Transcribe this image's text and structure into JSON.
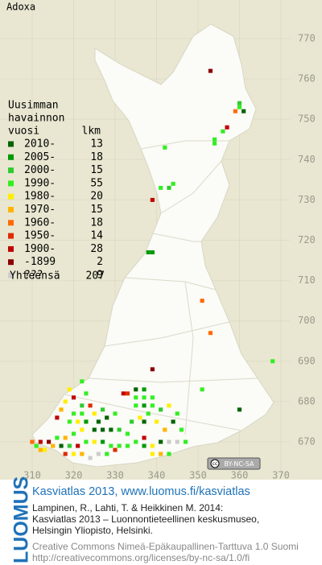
{
  "map": {
    "title": "Adoxa",
    "legend": {
      "heading": [
        "Uusimman",
        "havainnon",
        "vuosi"
      ],
      "count_header": "lkm",
      "items": [
        {
          "label": "2010-",
          "count": 13,
          "color": "#006400"
        },
        {
          "label": "2005-",
          "count": 18,
          "color": "#009a00"
        },
        {
          "label": "2000-",
          "count": 15,
          "color": "#2ecc2e"
        },
        {
          "label": "1990-",
          "count": 55,
          "color": "#33ee22"
        },
        {
          "label": "1980-",
          "count": 20,
          "color": "#ffee00"
        },
        {
          "label": "1970-",
          "count": 15,
          "color": "#ffb400"
        },
        {
          "label": "1960-",
          "count": 18,
          "color": "#ff6a00"
        },
        {
          "label": "1950-",
          "count": 14,
          "color": "#e02a00"
        },
        {
          "label": "1900-",
          "count": 28,
          "color": "#c00000"
        },
        {
          "label": "-1899",
          "count": 2,
          "color": "#8a0000"
        },
        {
          "label": "???",
          "count": 9,
          "color": "#cccccc"
        }
      ],
      "total_label": "Yhteensä",
      "total": 207
    },
    "yticks": [
      770,
      760,
      750,
      740,
      730,
      720,
      710,
      700,
      690,
      680,
      670
    ],
    "xticks": [
      310,
      320,
      330,
      340,
      350,
      360,
      370
    ],
    "squares": [
      [
        353,
        762,
        9
      ],
      [
        359,
        752,
        6
      ],
      [
        360,
        753,
        3
      ],
      [
        361,
        752,
        0
      ],
      [
        360,
        754,
        2
      ],
      [
        357,
        748,
        8
      ],
      [
        356,
        747,
        3
      ],
      [
        354,
        745,
        3
      ],
      [
        354,
        744,
        3
      ],
      [
        342,
        743,
        3
      ],
      [
        344,
        734,
        3
      ],
      [
        343,
        733,
        2
      ],
      [
        341,
        733,
        3
      ],
      [
        339,
        730,
        8
      ],
      [
        339,
        717,
        1
      ],
      [
        338,
        717,
        1
      ],
      [
        351,
        705,
        6
      ],
      [
        353,
        697,
        6
      ],
      [
        368,
        690,
        3
      ],
      [
        339,
        688,
        9
      ],
      [
        351,
        683,
        3
      ],
      [
        360,
        678,
        0
      ],
      [
        333,
        682,
        7
      ],
      [
        332,
        682,
        8
      ],
      [
        337,
        681,
        3
      ],
      [
        335,
        681,
        3
      ],
      [
        322,
        685,
        3
      ],
      [
        319,
        683,
        4
      ],
      [
        320,
        681,
        8
      ],
      [
        323,
        682,
        3
      ],
      [
        318,
        680,
        4
      ],
      [
        322,
        679,
        2
      ],
      [
        324,
        679,
        7
      ],
      [
        317,
        678,
        5
      ],
      [
        320,
        677,
        3
      ],
      [
        322,
        677,
        3
      ],
      [
        325,
        677,
        4
      ],
      [
        327,
        678,
        2
      ],
      [
        316,
        676,
        8
      ],
      [
        319,
        675,
        3
      ],
      [
        321,
        675,
        4
      ],
      [
        323,
        675,
        1
      ],
      [
        326,
        675,
        0
      ],
      [
        328,
        676,
        0
      ],
      [
        330,
        677,
        3
      ],
      [
        325,
        673,
        0
      ],
      [
        327,
        673,
        0
      ],
      [
        329,
        673,
        0
      ],
      [
        331,
        673,
        2
      ],
      [
        333,
        672,
        3
      ],
      [
        322,
        673,
        4
      ],
      [
        320,
        672,
        3
      ],
      [
        318,
        671,
        5
      ],
      [
        316,
        671,
        3
      ],
      [
        314,
        670,
        9
      ],
      [
        312,
        670,
        8
      ],
      [
        310,
        670,
        6
      ],
      [
        311,
        669,
        3
      ],
      [
        313,
        668,
        4
      ],
      [
        315,
        669,
        5
      ],
      [
        317,
        669,
        0
      ],
      [
        319,
        669,
        2
      ],
      [
        321,
        669,
        8
      ],
      [
        323,
        670,
        3
      ],
      [
        325,
        670,
        4
      ],
      [
        327,
        670,
        1
      ],
      [
        329,
        669,
        3
      ],
      [
        331,
        669,
        3
      ],
      [
        320,
        667,
        4
      ],
      [
        322,
        667,
        5
      ],
      [
        324,
        666,
        10
      ],
      [
        326,
        667,
        10
      ],
      [
        328,
        667,
        3
      ],
      [
        330,
        668,
        7
      ],
      [
        333,
        669,
        3
      ],
      [
        335,
        670,
        3
      ],
      [
        337,
        669,
        1
      ],
      [
        339,
        669,
        4
      ],
      [
        341,
        670,
        0
      ],
      [
        343,
        670,
        10
      ],
      [
        345,
        670,
        10
      ],
      [
        347,
        670,
        3
      ],
      [
        339,
        667,
        4
      ],
      [
        341,
        667,
        5
      ],
      [
        343,
        667,
        3
      ],
      [
        337,
        671,
        8
      ],
      [
        338,
        677,
        3
      ],
      [
        340,
        675,
        4
      ],
      [
        337,
        675,
        0
      ],
      [
        335,
        679,
        3
      ],
      [
        337,
        679,
        1
      ],
      [
        339,
        679,
        3
      ],
      [
        341,
        678,
        2
      ],
      [
        343,
        679,
        4
      ],
      [
        345,
        677,
        3
      ],
      [
        344,
        675,
        0
      ],
      [
        342,
        673,
        5
      ],
      [
        346,
        673,
        3
      ],
      [
        336,
        676,
        4
      ],
      [
        334,
        675,
        2
      ],
      [
        339,
        681,
        3
      ],
      [
        337,
        683,
        1
      ],
      [
        335,
        683,
        0
      ],
      [
        312,
        668,
        5
      ],
      [
        318,
        667,
        7
      ]
    ],
    "license_badge": "BY-NC-SA"
  },
  "footer": {
    "logo": "LUOMUS",
    "headline": "Kasviatlas 2013, www.luomus.fi/kasviatlas",
    "citation": [
      "Lampinen, R., Lahti, T. & Heikkinen M. 2014:",
      "Kasviatlas 2013 – Luonnontieteellinen keskusmuseo,",
      "Helsingin Yliopisto, Helsinki."
    ],
    "license": [
      "Creative Commons Nimeä-Epäkaupallinen-Tarttuva 1.0 Suomi",
      "http://creativecommons.org/licenses/by-nc-sa/1.0/fi"
    ]
  }
}
